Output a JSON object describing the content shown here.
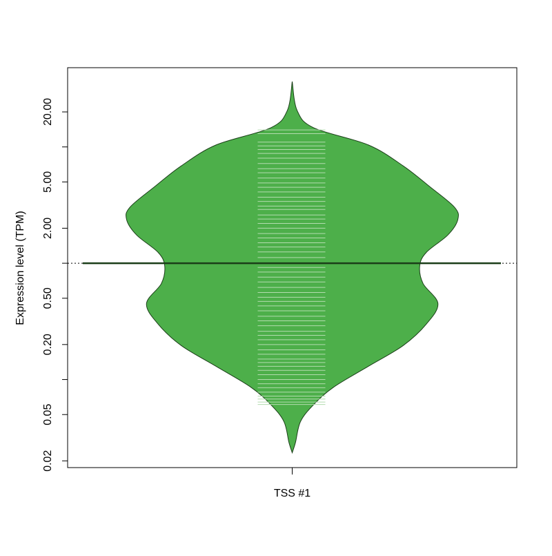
{
  "chart_data": {
    "type": "beanplot",
    "categories": [
      "TSS #1"
    ],
    "ylabel": "Expression level (TPM)",
    "log_y": true,
    "color": "#4daf4a",
    "bean_color": "#b3dcaf",
    "ylim": [
      0.0175,
      48
    ],
    "yticks": [
      0.02,
      0.05,
      {
        "value": 0.1,
        "label": ""
      },
      {
        "value": 0.2,
        "label": "0.20"
      },
      {
        "value": 0.5,
        "label": "0.50"
      },
      {
        "value": 1,
        "label": ""
      },
      {
        "value": 2,
        "label": "2.00"
      },
      {
        "value": 5,
        "label": "5.00"
      },
      {
        "value": 10,
        "label": ""
      },
      {
        "value": 20,
        "label": "20.00"
      }
    ],
    "density": {
      "y": [
        36.5,
        20.5,
        14.6,
        10.4,
        6.87,
        4.56,
        3.03,
        2.37,
        1.75,
        1.24,
        0.95,
        0.67,
        0.45,
        0.3,
        0.196,
        0.13,
        0.086,
        0.061,
        0.0435,
        0.0289,
        0.0235
      ],
      "width": [
        0,
        0.03,
        0.13,
        0.46,
        0.67,
        0.83,
        0.98,
        1,
        0.94,
        0.81,
        0.77,
        0.79,
        0.88,
        0.81,
        0.67,
        0.46,
        0.25,
        0.13,
        0.05,
        0.02,
        0
      ]
    },
    "average": 1.0,
    "observations": [
      14,
      13,
      11,
      10.2,
      9.5,
      8.8,
      8,
      7.2,
      6.5,
      6,
      5.4,
      4.9,
      4.5,
      4.1,
      3.7,
      3.4,
      3.1,
      2.9,
      2.6,
      2.4,
      2.2,
      2.0,
      1.8,
      1.65,
      1.5,
      1.38,
      1.25,
      1.12,
      1.0,
      0.92,
      0.84,
      0.76,
      0.69,
      0.62,
      0.56,
      0.51,
      0.47,
      0.43,
      0.39,
      0.35,
      0.32,
      0.29,
      0.26,
      0.24,
      0.22,
      0.2,
      0.18,
      0.165,
      0.15,
      0.14,
      0.13,
      0.12,
      0.11,
      0.1,
      0.092,
      0.085,
      0.078,
      0.072,
      0.068,
      0.064,
      0.061
    ]
  }
}
